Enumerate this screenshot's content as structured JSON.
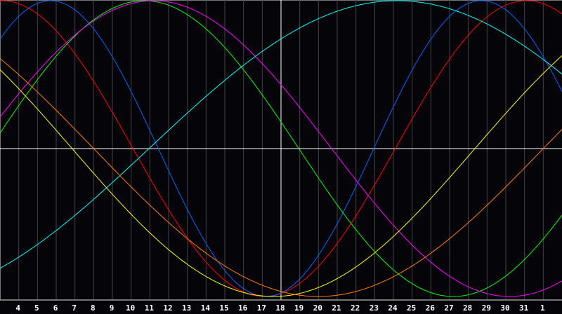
{
  "chart_data": {
    "type": "line",
    "title": "",
    "xlabel": "",
    "ylabel": "",
    "categories": [
      "4",
      "5",
      "6",
      "7",
      "8",
      "9",
      "10",
      "11",
      "12",
      "13",
      "14",
      "15",
      "16",
      "17",
      "18",
      "19",
      "20",
      "21",
      "22",
      "23",
      "24",
      "25",
      "26",
      "27",
      "28",
      "29",
      "30",
      "31",
      "1"
    ],
    "highlighted_category": "18",
    "ylim": [
      -100,
      100
    ],
    "grid": true,
    "center_line": true,
    "background": "#050409",
    "grid_color": "#444444",
    "series": [
      {
        "color": "#ff0000",
        "period_days": 28,
        "peak_at_category_index": -0.9
      },
      {
        "color": "#0066ff",
        "period_days": 23,
        "peak_at_category_index": 1.7
      },
      {
        "color": "#00ff00",
        "period_days": 33,
        "peak_at_category_index": 6.7
      },
      {
        "color": "#ff00ff",
        "period_days": 38,
        "peak_at_category_index": 7.2
      },
      {
        "color": "#00ffff",
        "period_days": 53,
        "peak_at_category_index": 20.2
      },
      {
        "color": "#ffff00",
        "period_days": 43,
        "peak_at_category_index": -7.9
      },
      {
        "color": "#ff8000",
        "period_days": 48,
        "peak_at_category_index": -8.0
      }
    ]
  }
}
